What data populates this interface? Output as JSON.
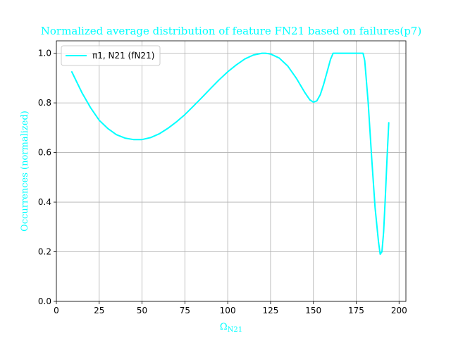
{
  "chart_data": {
    "type": "line",
    "title": "Normalized average distribution of feature FN21 based on failures(p7)",
    "xlabel": "Ω_N21",
    "xlabel_main": "Ω",
    "xlabel_sub": "N21",
    "ylabel": "Occurrences (normalized)",
    "xlim": [
      0,
      204
    ],
    "ylim": [
      0,
      1.05
    ],
    "x_ticks": [
      0,
      25,
      50,
      75,
      100,
      125,
      150,
      175,
      200
    ],
    "y_ticks": [
      0.0,
      0.2,
      0.4,
      0.6,
      0.8,
      1.0
    ],
    "x_tick_labels": [
      "0",
      "25",
      "50",
      "75",
      "100",
      "125",
      "150",
      "175",
      "200"
    ],
    "y_tick_labels": [
      "0.0",
      "0.2",
      "0.4",
      "0.6",
      "0.8",
      "1.0"
    ],
    "grid": true,
    "legend": "top-left",
    "series": [
      {
        "name": "π1, N21 (fN21)",
        "color": "#00ffff",
        "x": [
          9,
          15,
          20,
          25,
          30,
          35,
          40,
          45,
          50,
          55,
          60,
          65,
          70,
          75,
          80,
          85,
          90,
          95,
          100,
          105,
          110,
          115,
          120,
          122,
          125,
          130,
          135,
          140,
          145,
          148,
          150,
          152,
          154,
          156,
          158,
          160,
          161.5,
          165,
          170,
          175,
          179,
          180,
          182,
          184,
          186,
          188,
          189,
          190,
          191,
          192,
          193,
          194
        ],
        "y": [
          0.925,
          0.84,
          0.78,
          0.73,
          0.697,
          0.672,
          0.658,
          0.652,
          0.652,
          0.66,
          0.675,
          0.697,
          0.723,
          0.753,
          0.787,
          0.822,
          0.858,
          0.893,
          0.925,
          0.953,
          0.977,
          0.993,
          1.0,
          1.0,
          0.997,
          0.981,
          0.949,
          0.9,
          0.842,
          0.812,
          0.803,
          0.808,
          0.832,
          0.875,
          0.925,
          0.975,
          1.0,
          1.0,
          1.0,
          1.0,
          1.0,
          0.97,
          0.8,
          0.58,
          0.38,
          0.24,
          0.19,
          0.2,
          0.28,
          0.42,
          0.58,
          0.72
        ]
      }
    ]
  }
}
